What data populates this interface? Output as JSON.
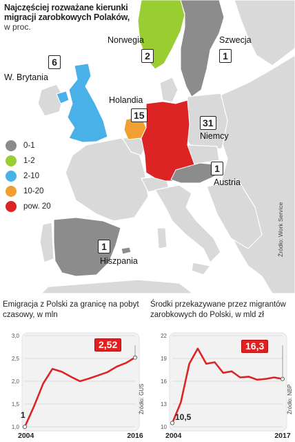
{
  "map": {
    "title": "Najczęściej rozważane kierunki migracji zarobkowych Polaków,",
    "subtitle": "w proc.",
    "source": "Źródło: Work Service",
    "colors": {
      "sea": "#ffffff",
      "land": "#d9d9d9",
      "cat_0_1": "#8c8c8c",
      "cat_1_2": "#9acd32",
      "cat_2_10": "#4ab0e8",
      "cat_10_20": "#f0a030",
      "cat_20_plus": "#dd2424"
    },
    "countries": [
      {
        "name": "Norwegia",
        "value": "2"
      },
      {
        "name": "Szwecja",
        "value": "1"
      },
      {
        "name": "W. Brytania",
        "value": "6"
      },
      {
        "name": "Holandia",
        "value": "15"
      },
      {
        "name": "Niemcy",
        "value": "31"
      },
      {
        "name": "Austria",
        "value": "1"
      },
      {
        "name": "Hiszpania",
        "value": "1"
      }
    ],
    "legend": [
      {
        "label": "0-1",
        "color": "#8c8c8c"
      },
      {
        "label": "1-2",
        "color": "#9acd32"
      },
      {
        "label": "2-10",
        "color": "#4ab0e8"
      },
      {
        "label": "10-20",
        "color": "#f0a030"
      },
      {
        "label": "pow. 20",
        "color": "#dd2424"
      }
    ]
  },
  "chart_data": [
    {
      "type": "line",
      "title": "Emigracja z Polski za granicę na pobyt czasowy, w mln",
      "source": "Źródło: GUS",
      "x": [
        2004,
        2005,
        2006,
        2007,
        2008,
        2009,
        2010,
        2011,
        2012,
        2013,
        2014,
        2015,
        2016
      ],
      "values": [
        1.0,
        1.45,
        1.95,
        2.27,
        2.21,
        2.1,
        2.0,
        2.06,
        2.13,
        2.2,
        2.32,
        2.4,
        2.52
      ],
      "ylim": [
        1.0,
        3.0
      ],
      "yticks": [
        "3,0",
        "2,5",
        "2,0",
        "1,5",
        "1,0"
      ],
      "xticks": [
        "2004",
        "2016"
      ],
      "start_label": "1",
      "end_label": "2,52",
      "color": "#dd2424",
      "grid": true
    },
    {
      "type": "line",
      "title": "Środki przekazywane przez migrantów zarobkowych do Polski, w mld zł",
      "source": "Źródło: NBP",
      "x": [
        2004,
        2005,
        2006,
        2007,
        2008,
        2009,
        2010,
        2011,
        2012,
        2013,
        2014,
        2015,
        2016,
        2017
      ],
      "values": [
        10.5,
        13.2,
        18.3,
        20.3,
        18.3,
        18.5,
        17.1,
        17.3,
        16.5,
        16.6,
        16.2,
        16.3,
        16.5,
        16.3
      ],
      "ylim": [
        10,
        22
      ],
      "yticks": [
        "22",
        "19",
        "16",
        "13",
        "10"
      ],
      "xticks": [
        "2004",
        "2017"
      ],
      "start_label": "10,5",
      "end_label": "16,3",
      "color": "#dd2424",
      "grid": true
    }
  ]
}
